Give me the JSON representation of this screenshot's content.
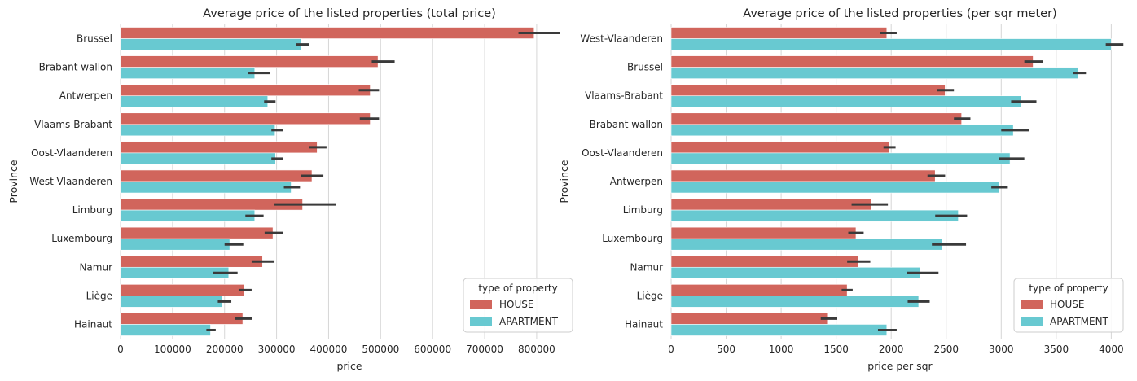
{
  "colors": {
    "house": "#d1655c",
    "apartment": "#68c9d1",
    "errorbar": "#3a3a3a",
    "grid": "#d6d6d6"
  },
  "chart_data": [
    {
      "type": "bar",
      "orientation": "horizontal",
      "title": "Average price of the listed properties (total price)",
      "xlabel": "price",
      "ylabel": "Province",
      "xlim": [
        0,
        880000
      ],
      "xticks": [
        0,
        100000,
        200000,
        300000,
        400000,
        500000,
        600000,
        700000,
        800000
      ],
      "xtick_labels": [
        "0",
        "100000",
        "200000",
        "300000",
        "400000",
        "500000",
        "600000",
        "700000",
        "800000"
      ],
      "grid": true,
      "legend": {
        "title": "type of property",
        "placement": "lower-right",
        "entries": [
          "HOUSE",
          "APARTMENT"
        ]
      },
      "categories": [
        "Brussel",
        "Brabant wallon",
        "Antwerpen",
        "Vlaams-Brabant",
        "Oost-Vlaanderen",
        "West-Vlaanderen",
        "Limburg",
        "Luxembourg",
        "Namur",
        "Liège",
        "Hainaut"
      ],
      "series": [
        {
          "name": "HOUSE",
          "values": [
            795000,
            495000,
            480000,
            480000,
            378000,
            368000,
            350000,
            293000,
            273000,
            238000,
            235000
          ],
          "ci": [
            [
              765000,
              845000
            ],
            [
              483000,
              527000
            ],
            [
              458000,
              497000
            ],
            [
              460000,
              497000
            ],
            [
              362000,
              396000
            ],
            [
              347000,
              390000
            ],
            [
              296000,
              414000
            ],
            [
              277000,
              312000
            ],
            [
              252000,
              296000
            ],
            [
              227000,
              252000
            ],
            [
              220000,
              253000
            ]
          ]
        },
        {
          "name": "APARTMENT",
          "values": [
            348000,
            258000,
            283000,
            297000,
            298000,
            328000,
            258000,
            210000,
            208000,
            196000,
            173000
          ],
          "ci": [
            [
              337000,
              362000
            ],
            [
              245000,
              287000
            ],
            [
              276000,
              298000
            ],
            [
              290000,
              313000
            ],
            [
              290000,
              313000
            ],
            [
              314000,
              345000
            ],
            [
              240000,
              275000
            ],
            [
              200000,
              236000
            ],
            [
              178000,
              225000
            ],
            [
              187000,
              213000
            ],
            [
              165000,
              183000
            ]
          ]
        }
      ]
    },
    {
      "type": "bar",
      "orientation": "horizontal",
      "title": "Average price of the listed properties (per sqr meter)",
      "xlabel": "price per sqr",
      "ylabel": "Province",
      "xlim": [
        0,
        4160
      ],
      "xticks": [
        0,
        500,
        1000,
        1500,
        2000,
        2500,
        3000,
        3500,
        4000
      ],
      "xtick_labels": [
        "0",
        "500",
        "1000",
        "1500",
        "2000",
        "2500",
        "3000",
        "3500",
        "4000"
      ],
      "grid": true,
      "legend": {
        "title": "type of property",
        "placement": "lower-right",
        "entries": [
          "HOUSE",
          "APARTMENT"
        ]
      },
      "categories": [
        "West-Vlaanderen",
        "Brussel",
        "Vlaams-Brabant",
        "Brabant wallon",
        "Oost-Vlaanderen",
        "Antwerpen",
        "Limburg",
        "Luxembourg",
        "Namur",
        "Liège",
        "Hainaut"
      ],
      "series": [
        {
          "name": "HOUSE",
          "values": [
            1960,
            3290,
            2490,
            2640,
            1980,
            2400,
            1820,
            1680,
            1700,
            1600,
            1420
          ],
          "ci": [
            [
              1900,
              2050
            ],
            [
              3210,
              3380
            ],
            [
              2420,
              2570
            ],
            [
              2570,
              2720
            ],
            [
              1930,
              2040
            ],
            [
              2330,
              2490
            ],
            [
              1640,
              1970
            ],
            [
              1610,
              1750
            ],
            [
              1600,
              1810
            ],
            [
              1550,
              1650
            ],
            [
              1360,
              1510
            ]
          ]
        },
        {
          "name": "APARTMENT",
          "values": [
            4000,
            3700,
            3180,
            3110,
            3080,
            2980,
            2610,
            2460,
            2260,
            2250,
            1960
          ],
          "ci": [
            [
              3950,
              4110
            ],
            [
              3650,
              3770
            ],
            [
              3090,
              3320
            ],
            [
              3000,
              3250
            ],
            [
              2980,
              3210
            ],
            [
              2910,
              3060
            ],
            [
              2400,
              2690
            ],
            [
              2370,
              2680
            ],
            [
              2140,
              2430
            ],
            [
              2150,
              2350
            ],
            [
              1880,
              2050
            ]
          ]
        }
      ]
    }
  ]
}
